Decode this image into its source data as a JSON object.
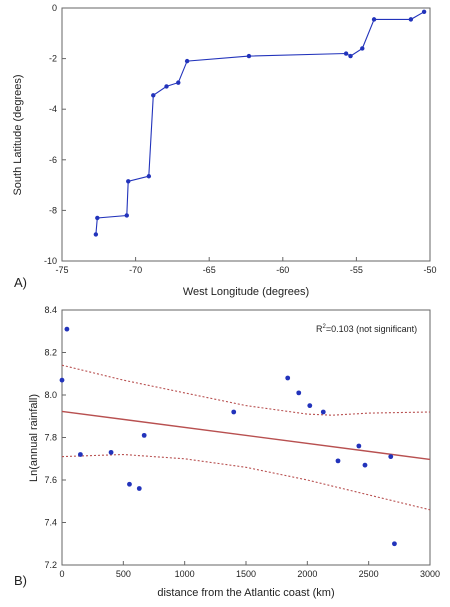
{
  "colors": {
    "series": "#2233bb",
    "fit": "#b85050",
    "ci": "#b85050",
    "axis": "#666666"
  },
  "chart_data": [
    {
      "type": "line",
      "panel_label": "A)",
      "xlabel": "West Longitude (degrees)",
      "ylabel": "South Latitude (degrees)",
      "xlim": [
        -75,
        -50
      ],
      "ylim": [
        -10,
        0
      ],
      "x_ticks": [
        -75,
        -70,
        -65,
        -60,
        -55,
        -50
      ],
      "y_ticks": [
        -10,
        -8,
        -6,
        -4,
        -2,
        0
      ],
      "x_tick_labels": [
        "-75",
        "-70",
        "-65",
        "-60",
        "-55",
        "-50"
      ],
      "y_tick_labels": [
        "-10",
        "-8",
        "-6",
        "-4",
        "-2",
        "0"
      ],
      "grid": false,
      "series": [
        {
          "x": [
            -72.7,
            -72.6,
            -70.6,
            -70.5,
            -69.1,
            -68.8,
            -67.9,
            -67.1,
            -66.5,
            -62.3,
            -55.7,
            -55.4,
            -54.6,
            -53.8,
            -51.3,
            -50.4
          ],
          "y": [
            -8.95,
            -8.3,
            -8.2,
            -6.85,
            -6.65,
            -3.45,
            -3.1,
            -2.95,
            -2.1,
            -1.9,
            -1.8,
            -1.9,
            -1.6,
            -0.45,
            -0.45,
            -0.15
          ]
        }
      ]
    },
    {
      "type": "scatter",
      "panel_label": "B)",
      "xlabel": "distance from the Atlantic coast (km)",
      "ylabel": "Ln(annual rainfall)",
      "xlim": [
        0,
        3000
      ],
      "ylim": [
        7.2,
        8.4
      ],
      "x_ticks": [
        0,
        500,
        1000,
        1500,
        2000,
        2500,
        3000
      ],
      "y_ticks": [
        7.2,
        7.4,
        7.6,
        7.8,
        8.0,
        8.2,
        8.4
      ],
      "x_tick_labels": [
        "0",
        "500",
        "1000",
        "1500",
        "2000",
        "2500",
        "3000"
      ],
      "y_tick_labels": [
        "7.2",
        "7.4",
        "7.6",
        "7.8",
        "8.0",
        "8.2",
        "8.4"
      ],
      "grid": false,
      "annotation": {
        "r2_base": "R",
        "r2_sup": "2",
        "r2_rest": "=0.103 (not significant)"
      },
      "points": {
        "x": [
          0,
          40,
          150,
          400,
          550,
          630,
          670,
          1400,
          1840,
          1930,
          2020,
          2130,
          2250,
          2420,
          2470,
          2680,
          2710
        ],
        "y": [
          8.07,
          8.31,
          7.72,
          7.73,
          7.58,
          7.56,
          7.81,
          7.92,
          8.08,
          8.01,
          7.95,
          7.92,
          7.69,
          7.76,
          7.67,
          7.71,
          7.3
        ]
      },
      "fit": {
        "x": [
          0,
          3000
        ],
        "y": [
          7.923,
          7.697
        ]
      },
      "ci_upper": {
        "x": [
          0,
          500,
          1000,
          1500,
          2000,
          2200,
          2500,
          3000
        ],
        "y": [
          8.14,
          8.07,
          8.01,
          7.95,
          7.91,
          7.905,
          7.915,
          7.92
        ]
      },
      "ci_lower": {
        "x": [
          0,
          500,
          1000,
          1500,
          2000,
          2500,
          3000
        ],
        "y": [
          7.71,
          7.72,
          7.7,
          7.66,
          7.6,
          7.53,
          7.46
        ]
      }
    }
  ]
}
